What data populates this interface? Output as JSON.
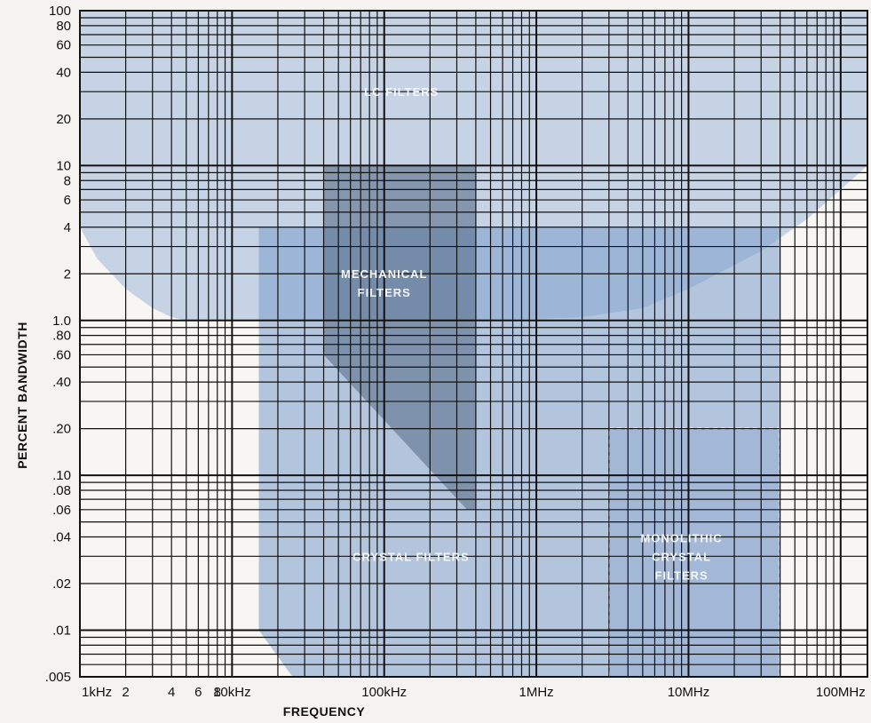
{
  "chart_data": {
    "type": "area",
    "title": "",
    "xlabel": "FREQUENCY",
    "ylabel": "PERCENT BANDWIDTH",
    "x_scale": "log",
    "y_scale": "log",
    "x_range_hz": [
      1000,
      150000000
    ],
    "y_range_percent": [
      0.005,
      100
    ],
    "x_ticks": [
      {
        "value": 1000,
        "label": "1kHz"
      },
      {
        "value": 2000,
        "label": "2"
      },
      {
        "value": 4000,
        "label": "4"
      },
      {
        "value": 6000,
        "label": "6"
      },
      {
        "value": 8000,
        "label": "8"
      },
      {
        "value": 10000,
        "label": "10kHz"
      },
      {
        "value": 100000,
        "label": "100kHz"
      },
      {
        "value": 1000000,
        "label": "1MHz"
      },
      {
        "value": 10000000,
        "label": "10MHz"
      },
      {
        "value": 100000000,
        "label": "100MHz"
      }
    ],
    "y_ticks": [
      {
        "value": 100,
        "label": "100"
      },
      {
        "value": 80,
        "label": "80"
      },
      {
        "value": 60,
        "label": "60"
      },
      {
        "value": 40,
        "label": "40"
      },
      {
        "value": 20,
        "label": "20"
      },
      {
        "value": 10,
        "label": "10"
      },
      {
        "value": 8,
        "label": "8"
      },
      {
        "value": 6,
        "label": "6"
      },
      {
        "value": 4,
        "label": "4"
      },
      {
        "value": 2,
        "label": "2"
      },
      {
        "value": 1.0,
        "label": "1.0"
      },
      {
        "value": 0.8,
        "label": ".80"
      },
      {
        "value": 0.6,
        "label": ".60"
      },
      {
        "value": 0.4,
        "label": ".40"
      },
      {
        "value": 0.2,
        "label": ".20"
      },
      {
        "value": 0.1,
        "label": ".10"
      },
      {
        "value": 0.08,
        "label": ".08"
      },
      {
        "value": 0.06,
        "label": ".06"
      },
      {
        "value": 0.04,
        "label": ".04"
      },
      {
        "value": 0.02,
        "label": ".02"
      },
      {
        "value": 0.01,
        "label": ".01"
      },
      {
        "value": 0.005,
        "label": ".005"
      }
    ],
    "regions": [
      {
        "name": "LC FILTERS",
        "label_lines": [
          "LC FILTERS"
        ],
        "label_at": [
          130000,
          30
        ],
        "color": "#9fb6d8",
        "opacity": 0.55,
        "outline": "none",
        "boundary": [
          [
            1000,
            100
          ],
          [
            1000,
            4
          ],
          [
            1300,
            2.5
          ],
          [
            2000,
            1.6
          ],
          [
            3000,
            1.2
          ],
          [
            4000,
            1.05
          ],
          [
            5000,
            1.0
          ],
          [
            500000,
            1.0
          ],
          [
            2000000,
            1.05
          ],
          [
            5000000,
            1.2
          ],
          [
            10000000,
            1.6
          ],
          [
            30000000,
            2.8
          ],
          [
            60000000,
            4.5
          ],
          [
            100000000,
            7
          ],
          [
            150000000,
            10
          ],
          [
            150000000,
            100
          ]
        ]
      },
      {
        "name": "CRYSTAL FILTERS",
        "label_lines": [
          "CRYSTAL FILTERS"
        ],
        "label_at": [
          150000,
          0.03
        ],
        "color": "#7b9ccc",
        "opacity": 0.55,
        "outline": "none",
        "boundary": [
          [
            15000,
            4
          ],
          [
            40000000,
            4
          ],
          [
            40000000,
            0.005
          ],
          [
            25000,
            0.005
          ],
          [
            15000,
            0.01
          ]
        ]
      },
      {
        "name": "MECHANICAL FILTERS",
        "label_lines": [
          "MECHANICAL",
          "FILTERS"
        ],
        "label_at": [
          100000,
          1.75
        ],
        "color": "#5a6f8c",
        "opacity": 0.6,
        "outline": "none",
        "boundary": [
          [
            40000,
            10
          ],
          [
            400000,
            10
          ],
          [
            400000,
            0.06
          ],
          [
            350000,
            0.06
          ],
          [
            40000,
            0.6
          ]
        ]
      },
      {
        "name": "MONOLITHIC CRYSTAL FILTERS",
        "label_lines": [
          "MONOLITHIC",
          "CRYSTAL",
          "FILTERS"
        ],
        "label_at": [
          9000000,
          0.03
        ],
        "color": "#6f94c4",
        "opacity": 0.0,
        "outline": "dashed",
        "boundary": [
          [
            3000000,
            0.2
          ],
          [
            40000000,
            0.2
          ],
          [
            40000000,
            0.005
          ],
          [
            3000000,
            0.005
          ]
        ]
      }
    ],
    "grid": true
  }
}
